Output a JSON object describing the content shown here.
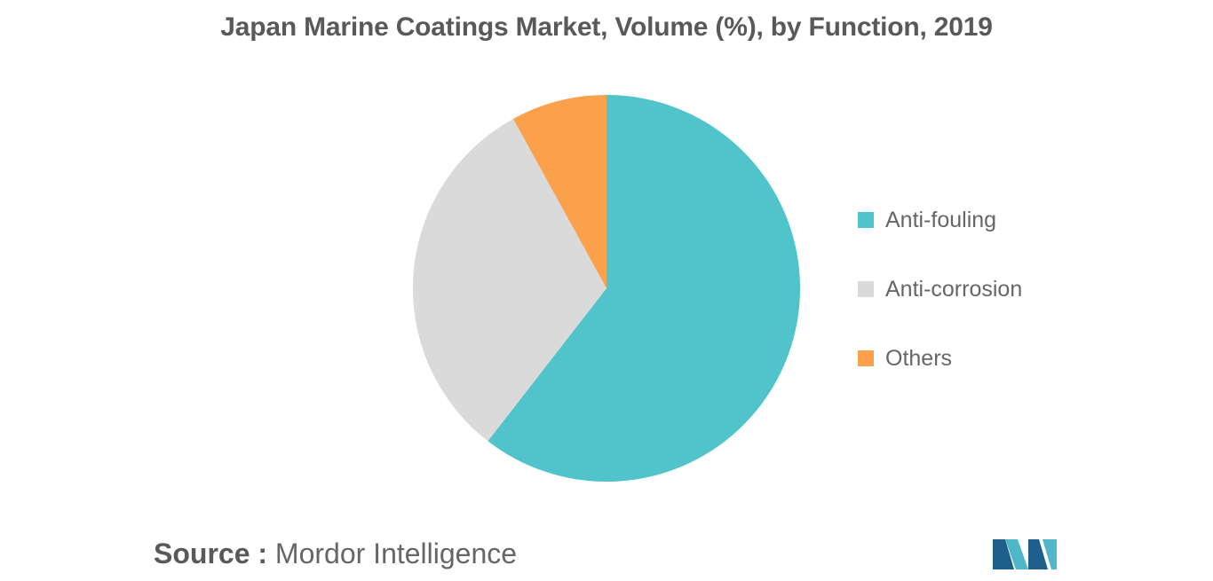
{
  "chart_data": {
    "type": "pie",
    "title": "Japan Marine Coatings Market, Volume (%), by Function, 2019",
    "categories": [
      "Anti-fouling",
      "Anti-corrosion",
      "Others"
    ],
    "values": [
      60.5,
      31.5,
      8.0
    ],
    "colors": [
      "#50C4CA",
      "#DADADA",
      "#FBA04B"
    ],
    "legend_position": "right"
  },
  "source": {
    "label": "Source :",
    "text": "Mordor Intelligence"
  },
  "logo": {
    "colors": [
      "#1F5F8B",
      "#4FB7C7"
    ]
  }
}
